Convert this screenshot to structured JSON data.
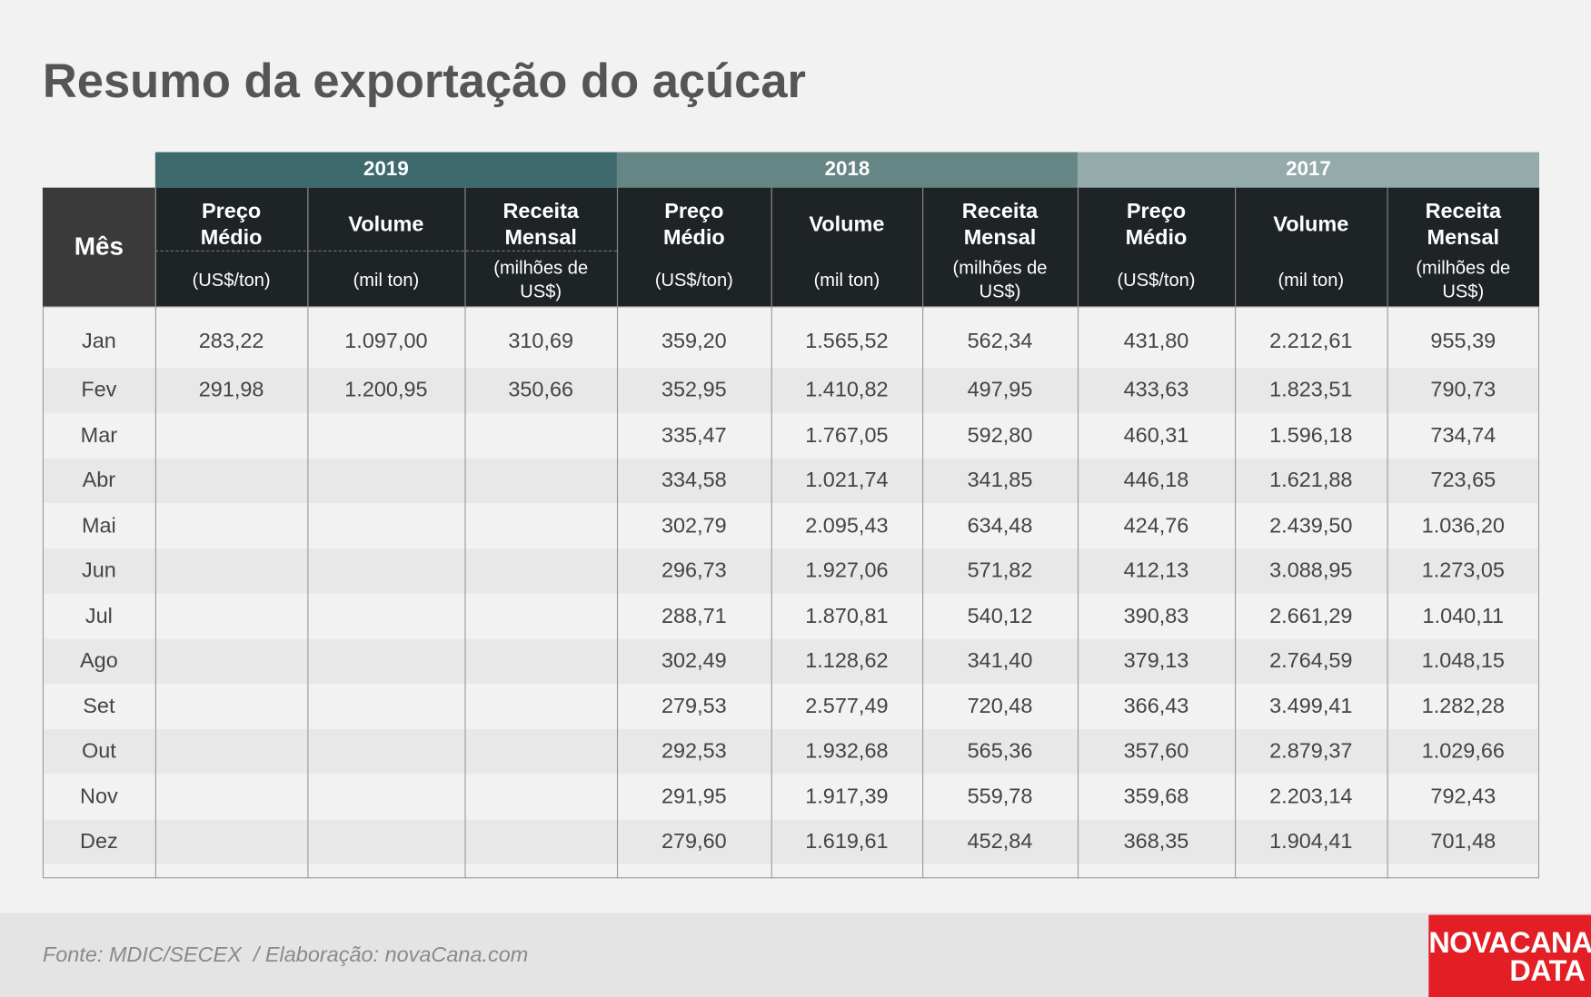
{
  "header": {
    "title": "Resumo da exportação do açúcar"
  },
  "table": {
    "month_header": "Mês",
    "groups": [
      {
        "year": "2019",
        "columns": [
          {
            "name": "Preço Médio",
            "unit": "(US$/ton)"
          },
          {
            "name": "Volume",
            "unit": "(mil ton)"
          },
          {
            "name": "Receita Mensal",
            "unit": "(milhões de US$)"
          }
        ]
      },
      {
        "year": "2018",
        "columns": [
          {
            "name": "Preço Médio",
            "unit": "(US$/ton)"
          },
          {
            "name": "Volume",
            "unit": "(mil ton)"
          },
          {
            "name": "Receita Mensal",
            "unit": "(milhões de US$)"
          }
        ]
      },
      {
        "year": "2017",
        "columns": [
          {
            "name": "Preço Médio",
            "unit": "(US$/ton)"
          },
          {
            "name": "Volume",
            "unit": "(mil ton)"
          },
          {
            "name": "Receita Mensal",
            "unit": "(milhões de US$)"
          }
        ]
      }
    ],
    "rows": [
      [
        "Jan",
        "283,22",
        "1.097,00",
        "310,69",
        "359,20",
        "1.565,52",
        "562,34",
        "431,80",
        "2.212,61",
        "955,39"
      ],
      [
        "Fev",
        "291,98",
        "1.200,95",
        "350,66",
        "352,95",
        "1.410,82",
        "497,95",
        "433,63",
        "1.823,51",
        "790,73"
      ],
      [
        "Mar",
        null,
        null,
        null,
        "335,47",
        "1.767,05",
        "592,80",
        "460,31",
        "1.596,18",
        "734,74"
      ],
      [
        "Abr",
        null,
        null,
        null,
        "334,58",
        "1.021,74",
        "341,85",
        "446,18",
        "1.621,88",
        "723,65"
      ],
      [
        "Mai",
        null,
        null,
        null,
        "302,79",
        "2.095,43",
        "634,48",
        "424,76",
        "2.439,50",
        "1.036,20"
      ],
      [
        "Jun",
        null,
        null,
        null,
        "296,73",
        "1.927,06",
        "571,82",
        "412,13",
        "3.088,95",
        "1.273,05"
      ],
      [
        "Jul",
        null,
        null,
        null,
        "288,71",
        "1.870,81",
        "540,12",
        "390,83",
        "2.661,29",
        "1.040,11"
      ],
      [
        "Ago",
        null,
        null,
        null,
        "302,49",
        "1.128,62",
        "341,40",
        "379,13",
        "2.764,59",
        "1.048,15"
      ],
      [
        "Set",
        null,
        null,
        null,
        "279,53",
        "2.577,49",
        "720,48",
        "366,43",
        "3.499,41",
        "1.282,28"
      ],
      [
        "Out",
        null,
        null,
        null,
        "292,53",
        "1.932,68",
        "565,36",
        "357,60",
        "2.879,37",
        "1.029,66"
      ],
      [
        "Nov",
        null,
        null,
        null,
        "291,95",
        "1.917,39",
        "559,78",
        "359,68",
        "2.203,14",
        "792,43"
      ],
      [
        "Dez",
        null,
        null,
        null,
        "279,60",
        "1.619,61",
        "452,84",
        "368,35",
        "1.904,41",
        "701,48"
      ]
    ]
  },
  "footer": {
    "source": "Fonte: MDIC/SECEX  / Elaboração: novaCana.com",
    "logo_top": "NOVACANA",
    "logo_bottom": "DATA"
  }
}
